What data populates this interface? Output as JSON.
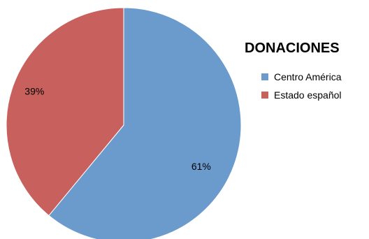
{
  "chart_data": {
    "type": "pie",
    "title": "DONACIONES",
    "categories": [
      "Centro América",
      "Estado español"
    ],
    "values": [
      61,
      39
    ],
    "data_labels": [
      "61%",
      "39%"
    ],
    "colors": [
      "#6a9bcc",
      "#c8605d"
    ],
    "legend_position": "right",
    "start_angle": "top",
    "direction": "clockwise"
  },
  "legend": {
    "items": [
      {
        "label": "Centro América",
        "color": "#6a9bcc"
      },
      {
        "label": "Estado español",
        "color": "#c8605d"
      }
    ]
  }
}
